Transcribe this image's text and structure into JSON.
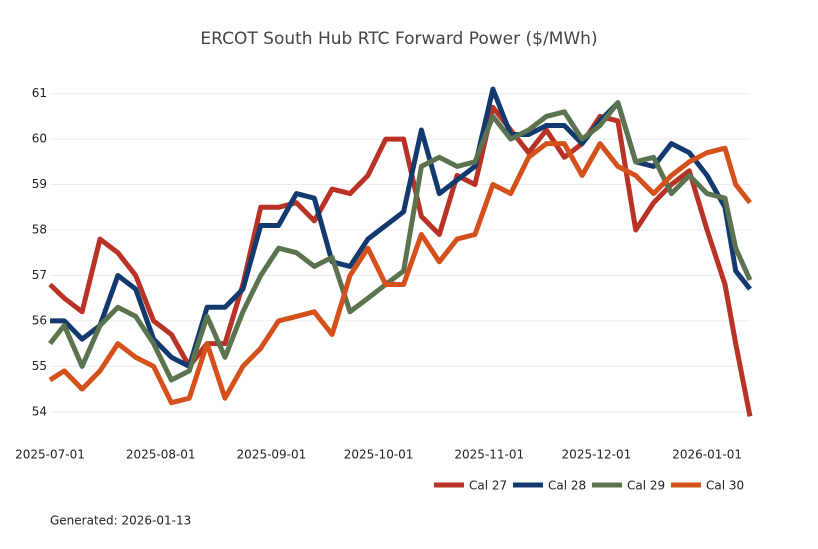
{
  "chart_data": {
    "type": "line",
    "title": "ERCOT South Hub RTC Forward Power ($/MWh)",
    "x": [
      "2025-07-01",
      "2025-07-05",
      "2025-07-10",
      "2025-07-15",
      "2025-07-20",
      "2025-07-25",
      "2025-07-30",
      "2025-08-04",
      "2025-08-09",
      "2025-08-14",
      "2025-08-19",
      "2025-08-24",
      "2025-08-29",
      "2025-09-03",
      "2025-09-08",
      "2025-09-13",
      "2025-09-18",
      "2025-09-23",
      "2025-09-28",
      "2025-10-03",
      "2025-10-08",
      "2025-10-13",
      "2025-10-18",
      "2025-10-23",
      "2025-10-28",
      "2025-11-02",
      "2025-11-07",
      "2025-11-12",
      "2025-11-17",
      "2025-11-22",
      "2025-11-27",
      "2025-12-02",
      "2025-12-07",
      "2025-12-12",
      "2025-12-17",
      "2025-12-22",
      "2025-12-27",
      "2026-01-01",
      "2026-01-06",
      "2026-01-09",
      "2026-01-13"
    ],
    "series": [
      {
        "name": "Cal 27",
        "color": "#b83226",
        "values": [
          56.8,
          56.5,
          56.2,
          57.8,
          57.5,
          57.0,
          56.0,
          55.7,
          55.0,
          55.5,
          55.5,
          56.8,
          58.5,
          58.5,
          58.6,
          58.2,
          58.9,
          58.8,
          59.2,
          60.0,
          60.0,
          58.3,
          57.9,
          59.2,
          59.0,
          60.7,
          60.2,
          59.7,
          60.2,
          59.6,
          59.9,
          60.5,
          60.4,
          58.0,
          58.6,
          59.0,
          59.3,
          58.0,
          56.8,
          55.5,
          53.9
        ]
      },
      {
        "name": "Cal 28",
        "color": "#123a6e",
        "values": [
          56.0,
          56.0,
          55.6,
          55.9,
          57.0,
          56.7,
          55.6,
          55.2,
          55.0,
          56.3,
          56.3,
          56.7,
          58.1,
          58.1,
          58.8,
          58.7,
          57.3,
          57.2,
          57.8,
          58.1,
          58.4,
          60.2,
          58.8,
          59.1,
          59.4,
          61.1,
          60.1,
          60.1,
          60.3,
          60.3,
          59.9,
          60.4,
          60.8,
          59.5,
          59.4,
          59.9,
          59.7,
          59.2,
          58.5,
          57.1,
          56.7
        ]
      },
      {
        "name": "Cal 29",
        "color": "#5c7350",
        "values": [
          55.5,
          55.9,
          55.0,
          55.9,
          56.3,
          56.1,
          55.5,
          54.7,
          54.9,
          56.1,
          55.2,
          56.2,
          57.0,
          57.6,
          57.5,
          57.2,
          57.4,
          56.2,
          56.5,
          56.8,
          57.1,
          59.4,
          59.6,
          59.4,
          59.5,
          60.5,
          60.0,
          60.2,
          60.5,
          60.6,
          60.0,
          60.3,
          60.8,
          59.5,
          59.6,
          58.8,
          59.2,
          58.8,
          58.7,
          57.6,
          56.9
        ]
      },
      {
        "name": "Cal 30",
        "color": "#d4511c",
        "values": [
          54.7,
          54.9,
          54.5,
          54.9,
          55.5,
          55.2,
          55.0,
          54.2,
          54.3,
          55.5,
          54.3,
          55.0,
          55.4,
          56.0,
          56.1,
          56.2,
          55.7,
          57.0,
          57.6,
          56.8,
          56.8,
          57.9,
          57.3,
          57.8,
          57.9,
          59.0,
          58.8,
          59.6,
          59.9,
          59.9,
          59.2,
          59.9,
          59.4,
          59.2,
          58.8,
          59.2,
          59.5,
          59.7,
          59.8,
          59.0,
          58.6
        ]
      }
    ],
    "xlim": [
      "2025-07-01",
      "2026-01-13"
    ],
    "xticks": [
      "2025-07-01",
      "2025-08-01",
      "2025-09-01",
      "2025-10-01",
      "2025-11-01",
      "2025-12-01",
      "2026-01-01"
    ],
    "ylim": [
      53.6,
      61.3
    ],
    "yticks": [
      54,
      55,
      56,
      57,
      58,
      59,
      60,
      61
    ],
    "grid": true,
    "legend": "bottom-right",
    "footnote": "Generated: 2026-01-13"
  }
}
